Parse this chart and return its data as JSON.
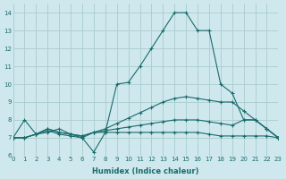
{
  "line1_x": [
    0,
    1,
    2,
    3,
    4,
    5,
    6,
    7,
    8,
    9,
    10,
    11,
    12,
    13,
    14,
    15,
    16,
    17,
    18,
    19,
    20,
    21,
    22,
    23
  ],
  "line1_y": [
    7.0,
    8.0,
    7.2,
    7.3,
    7.5,
    7.2,
    7.0,
    6.2,
    7.3,
    10.0,
    10.1,
    11.0,
    12.0,
    13.0,
    14.0,
    14.0,
    13.0,
    13.0,
    10.0,
    9.5,
    8.0,
    8.0,
    7.5,
    7.0
  ],
  "line2_x": [
    0,
    1,
    2,
    3,
    4,
    5,
    6,
    7,
    8,
    9,
    10,
    11,
    12,
    13,
    14,
    15,
    16,
    17,
    18,
    19,
    20,
    21,
    22,
    23
  ],
  "line2_y": [
    7.0,
    7.0,
    7.2,
    7.5,
    7.3,
    7.2,
    7.1,
    7.3,
    7.5,
    7.8,
    8.1,
    8.4,
    8.7,
    9.0,
    9.2,
    9.3,
    9.2,
    9.1,
    9.0,
    9.0,
    8.5,
    8.0,
    7.5,
    7.0
  ],
  "line3_x": [
    0,
    1,
    2,
    3,
    4,
    5,
    6,
    7,
    8,
    9,
    10,
    11,
    12,
    13,
    14,
    15,
    16,
    17,
    18,
    19,
    20,
    21,
    22,
    23
  ],
  "line3_y": [
    7.0,
    7.0,
    7.2,
    7.5,
    7.3,
    7.2,
    7.1,
    7.3,
    7.4,
    7.5,
    7.6,
    7.7,
    7.8,
    7.9,
    8.0,
    8.0,
    8.0,
    7.9,
    7.8,
    7.7,
    8.0,
    8.0,
    7.5,
    7.0
  ],
  "line4_x": [
    0,
    1,
    2,
    3,
    4,
    5,
    6,
    7,
    8,
    9,
    10,
    11,
    12,
    13,
    14,
    15,
    16,
    17,
    18,
    19,
    20,
    21,
    22,
    23
  ],
  "line4_y": [
    7.0,
    7.0,
    7.2,
    7.4,
    7.2,
    7.1,
    7.0,
    7.3,
    7.3,
    7.3,
    7.3,
    7.3,
    7.3,
    7.3,
    7.3,
    7.3,
    7.3,
    7.2,
    7.1,
    7.1,
    7.1,
    7.1,
    7.1,
    7.0
  ],
  "color": "#1a6b6b",
  "bg_color": "#cee8ee",
  "grid_color": "#aacccc",
  "xlabel": "Humidex (Indice chaleur)",
  "xlim": [
    0,
    23
  ],
  "ylim": [
    6,
    14.5
  ],
  "xticks": [
    0,
    1,
    2,
    3,
    4,
    5,
    6,
    7,
    8,
    9,
    10,
    11,
    12,
    13,
    14,
    15,
    16,
    17,
    18,
    19,
    20,
    21,
    22,
    23
  ],
  "yticks": [
    6,
    7,
    8,
    9,
    10,
    11,
    12,
    13,
    14
  ],
  "marker": "+",
  "markersize": 3,
  "linewidth": 0.8,
  "xlabel_fontsize": 6,
  "tick_fontsize": 5
}
